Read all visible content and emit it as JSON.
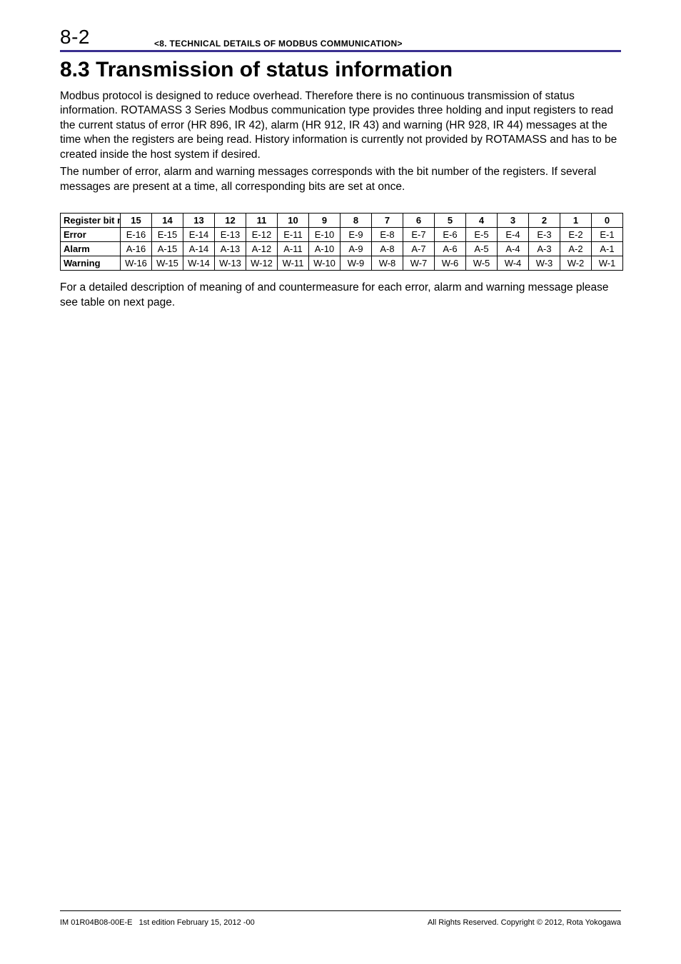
{
  "header": {
    "page_number": "8-2",
    "chapter_title": "<8. TECHNICAL DETAILS OF MODBUS COMMUNICATION>"
  },
  "section": {
    "number": "8.3",
    "title": "Transmission of status information"
  },
  "paragraphs": {
    "p1": "Modbus protocol is designed to reduce overhead. Therefore there is no continuous transmission of status information. ROTAMASS 3 Series Modbus communication type provides three holding and input registers to read the current status of error (HR 896, IR 42), alarm (HR 912, IR 43) and warning (HR 928, IR 44) messages at the time when the registers are being read. History information is currently not provided by ROTAMASS and has to be created inside the host system if desired.",
    "p2": "The number of error, alarm and warning messages corresponds with the bit number of the registers. If several messages are present at a time, all corresponding bits are set at once.",
    "p3": "For a detailed description of meaning of and countermeasure for each error, alarm and warning message please see table on next page."
  },
  "table": {
    "header_label": "Register bit no.",
    "bits": [
      "15",
      "14",
      "13",
      "12",
      "11",
      "10",
      "9",
      "8",
      "7",
      "6",
      "5",
      "4",
      "3",
      "2",
      "1",
      "0"
    ],
    "rows": [
      {
        "label": "Error",
        "cells": [
          "E-16",
          "E-15",
          "E-14",
          "E-13",
          "E-12",
          "E-11",
          "E-10",
          "E-9",
          "E-8",
          "E-7",
          "E-6",
          "E-5",
          "E-4",
          "E-3",
          "E-2",
          "E-1"
        ]
      },
      {
        "label": "Alarm",
        "cells": [
          "A-16",
          "A-15",
          "A-14",
          "A-13",
          "A-12",
          "A-11",
          "A-10",
          "A-9",
          "A-8",
          "A-7",
          "A-6",
          "A-5",
          "A-4",
          "A-3",
          "A-2",
          "A-1"
        ]
      },
      {
        "label": "Warning",
        "cells": [
          "W-16",
          "W-15",
          "W-14",
          "W-13",
          "W-12",
          "W-11",
          "W-10",
          "W-9",
          "W-8",
          "W-7",
          "W-6",
          "W-5",
          "W-4",
          "W-3",
          "W-2",
          "W-1"
        ]
      }
    ]
  },
  "footer": {
    "left": "IM 01R04B08-00E-E   1st edition February 15, 2012 -00",
    "right": "All Rights Reserved. Copyright © 2012, Rota Yokogawa"
  },
  "colors": {
    "rule": "#3a2f8f",
    "text": "#000000",
    "background": "#ffffff"
  },
  "fonts": {
    "page_num_size_pt": 21,
    "header_title_size_pt": 9,
    "section_title_size_pt": 22,
    "body_size_pt": 12,
    "table_size_pt": 10,
    "footer_size_pt": 8
  }
}
